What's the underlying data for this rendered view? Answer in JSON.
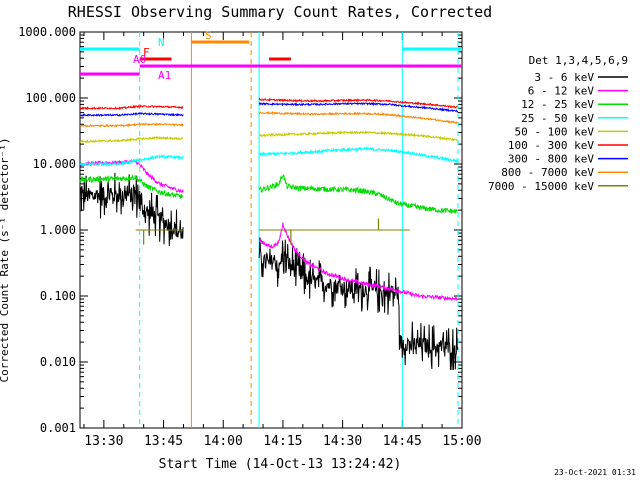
{
  "chart_data": {
    "type": "line",
    "title": "RHESSI Observing Summary Count Rates, Corrected",
    "xlabel": "Start Time (14-Oct-13 13:24:42)",
    "ylabel": "Corrected Count Rate (s⁻¹ detector⁻¹)",
    "y_scale": "log",
    "ylim": [
      0.001,
      1000
    ],
    "x_range_min": [
      0,
      96
    ],
    "x_tick_minutes": [
      6,
      21,
      36,
      51,
      66,
      81,
      96
    ],
    "x_tick_labels": [
      "13:30",
      "13:45",
      "14:00",
      "14:15",
      "14:30",
      "14:45",
      "15:00"
    ],
    "y_ticks": [
      1000,
      100,
      10,
      1,
      0.1,
      0.01,
      0.001
    ],
    "y_tick_labels": [
      "1000.000",
      "100.000",
      "10.000",
      "1.000",
      "0.100",
      "0.010",
      "0.001"
    ],
    "legend_title": "Det 1,3,4,5,6,9",
    "legend_position": "right",
    "series": [
      {
        "name": "3 - 6 keV",
        "color": "#000000",
        "noise": 0.12,
        "segments": [
          {
            "x": [
              0,
              14,
              15,
              15.2,
              17,
              20,
              23,
              26
            ],
            "y": [
              3.3,
              3.4,
              3.3,
              2.2,
              1.8,
              1.45,
              1.15,
              0.85
            ]
          },
          {
            "x": [
              45,
              47,
              49,
              50,
              51,
              52,
              55,
              58,
              62,
              68,
              74,
              80,
              80.4,
              83,
              86,
              90,
              95
            ],
            "y": [
              0.4,
              0.3,
              0.35,
              0.25,
              0.45,
              0.33,
              0.22,
              0.17,
              0.15,
              0.13,
              0.12,
              0.11,
              0.02,
              0.019,
              0.018,
              0.017,
              0.016
            ]
          }
        ]
      },
      {
        "name": "6 - 12 keV",
        "color": "#ff00ff",
        "noise": 0.03,
        "segments": [
          {
            "x": [
              0,
              10,
              14,
              15.5,
              17,
              20,
              23,
              26
            ],
            "y": [
              10,
              10.5,
              11,
              9,
              7,
              5,
              4.3,
              3.8
            ]
          },
          {
            "x": [
              45,
              48,
              50,
              51,
              52,
              54,
              57,
              62,
              68,
              75,
              80,
              85,
              90,
              95
            ],
            "y": [
              0.7,
              0.55,
              0.65,
              1.25,
              0.85,
              0.5,
              0.32,
              0.22,
              0.17,
              0.14,
              0.12,
              0.1,
              0.095,
              0.09
            ]
          }
        ]
      },
      {
        "name": "12 - 25 keV",
        "color": "#00dd00",
        "noise": 0.04,
        "segments": [
          {
            "x": [
              0,
              10,
              14,
              15,
              17,
              20,
              23,
              26
            ],
            "y": [
              5.8,
              6,
              6.3,
              5.6,
              4.5,
              3.8,
              3.4,
              3.2
            ]
          },
          {
            "x": [
              45,
              48,
              50,
              51,
              52,
              55,
              60,
              65,
              70,
              75,
              80,
              85,
              90,
              95
            ],
            "y": [
              4,
              4.5,
              5,
              7,
              4.6,
              4.3,
              4.2,
              4.1,
              4,
              3.5,
              2.5,
              2.2,
              2,
              1.9
            ]
          }
        ]
      },
      {
        "name": "25 - 50 keV",
        "color": "#00ffff",
        "noise": 0.02,
        "segments": [
          {
            "x": [
              0,
              10,
              15,
              20,
              26
            ],
            "y": [
              10,
              10,
              11.5,
              13,
              12.5
            ]
          },
          {
            "x": [
              45,
              52,
              60,
              66,
              72,
              78,
              82,
              88,
              95
            ],
            "y": [
              14,
              14.5,
              15.5,
              16.5,
              17,
              16,
              15,
              13,
              11
            ]
          }
        ]
      },
      {
        "name": "50 - 100 keV",
        "color": "#c8c800",
        "noise": 0.015,
        "segments": [
          {
            "x": [
              0,
              10,
              15,
              20,
              26
            ],
            "y": [
              22,
              22.5,
              24,
              25,
              24
            ]
          },
          {
            "x": [
              45,
              52,
              60,
              66,
              72,
              78,
              82,
              88,
              95
            ],
            "y": [
              27,
              28,
              29,
              30,
              30,
              29,
              28,
              26,
              23
            ]
          }
        ]
      },
      {
        "name": "100 - 300 keV",
        "color": "#ff0000",
        "noise": 0.012,
        "segments": [
          {
            "x": [
              0,
              10,
              15,
              20,
              26
            ],
            "y": [
              70,
              70,
              75,
              74,
              72
            ]
          },
          {
            "x": [
              45,
              52,
              60,
              66,
              72,
              78,
              82,
              88,
              95
            ],
            "y": [
              95,
              92,
              90,
              92,
              93,
              90,
              85,
              80,
              72
            ]
          }
        ]
      },
      {
        "name": "300 - 800 keV",
        "color": "#0000ff",
        "noise": 0.012,
        "segments": [
          {
            "x": [
              0,
              10,
              15,
              20,
              26
            ],
            "y": [
              55,
              55,
              58,
              57,
              55
            ]
          },
          {
            "x": [
              45,
              52,
              60,
              66,
              72,
              78,
              82,
              88,
              95
            ],
            "y": [
              82,
              80,
              80,
              82,
              82,
              80,
              75,
              70,
              63
            ]
          }
        ]
      },
      {
        "name": "800 - 7000 keV",
        "color": "#ff8800",
        "noise": 0.012,
        "segments": [
          {
            "x": [
              0,
              10,
              15,
              20,
              26
            ],
            "y": [
              38,
              38,
              40,
              40,
              39
            ]
          },
          {
            "x": [
              45,
              52,
              60,
              66,
              72,
              78,
              82,
              88,
              95
            ],
            "y": [
              60,
              58,
              57,
              58,
              58,
              56,
              52,
              48,
              42
            ]
          }
        ]
      },
      {
        "name": "7000 - 15000 keV",
        "color": "#808000",
        "noise": 0.0,
        "segments": [
          {
            "x": [
              14,
              26
            ],
            "y": [
              1,
              1
            ]
          },
          {
            "x": [
              45,
              83
            ],
            "y": [
              1,
              1
            ]
          }
        ],
        "spikes": [
          {
            "x": 16,
            "y": 0.6
          },
          {
            "x": 53,
            "y": 0.6
          },
          {
            "x": 75,
            "y": 1.5
          }
        ]
      }
    ],
    "flag_bars": [
      {
        "label": "N",
        "color": "#00ffff",
        "segments": [
          [
            0,
            15
          ],
          [
            81,
            96
          ]
        ]
      },
      {
        "label": "S",
        "color": "#ff8800",
        "segments": [
          [
            28,
            42.5
          ]
        ]
      },
      {
        "label": "F",
        "color": "#ff0000",
        "segments": [
          [
            15,
            23
          ],
          [
            47.5,
            53
          ]
        ]
      },
      {
        "label": "A0",
        "color": "#ff00ff",
        "segments": [
          [
            15,
            96
          ]
        ]
      },
      {
        "label": "A1",
        "color": "#ff00ff",
        "segments": [
          [
            0,
            15
          ]
        ]
      }
    ],
    "event_lines": [
      {
        "x": 15,
        "color": "#00ffff",
        "style": "dashed"
      },
      {
        "x": 28,
        "color": "#ff8800",
        "style": "solid"
      },
      {
        "x": 43,
        "color": "#ff8800",
        "style": "dashed"
      },
      {
        "x": 45,
        "color": "#00ffff",
        "style": "solid"
      },
      {
        "x": 81,
        "color": "#00ffff",
        "style": "solid"
      },
      {
        "x": 95,
        "color": "#00ffff",
        "style": "dashed"
      }
    ],
    "grid": false
  },
  "footer": {
    "timestamp": "23-Oct-2021 01:31"
  }
}
